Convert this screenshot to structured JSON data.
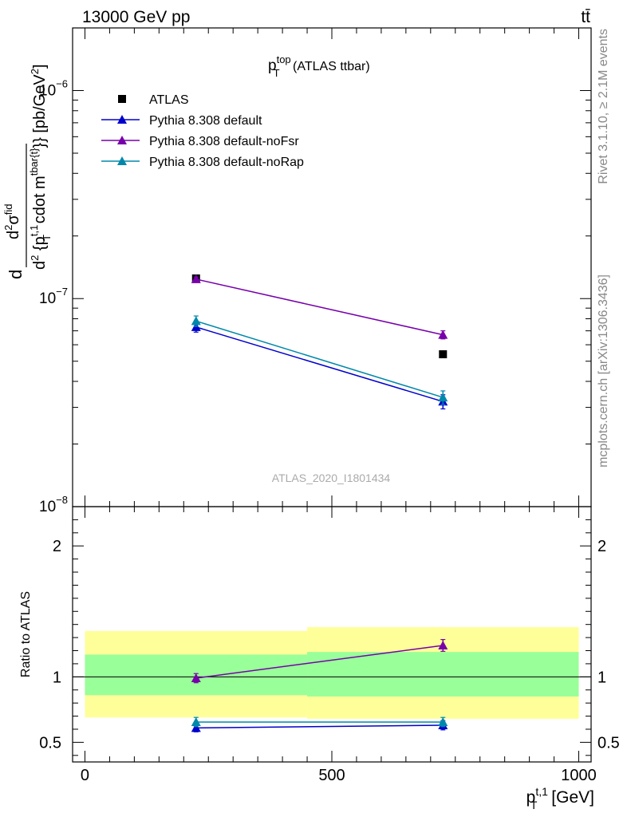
{
  "header": {
    "left": "13000 GeV pp",
    "right": "tt̄"
  },
  "side_labels": {
    "rivet": "Rivet 3.1.10, ≥ 2.1M events",
    "mcplots": "mcplots.cern.ch [arXiv:1306.3436]"
  },
  "chart_data": [
    {
      "type": "line",
      "title_main": "p",
      "title_sup": "top",
      "title_sub": "T",
      "title_rest": " (ATLAS ttbar)",
      "ylabel": "d²σ^{fid} / d² {p_T^{t,1} cdot m^{tbar{t}}} [pb/GeV²]",
      "ylabel_parts": {
        "d1": "d",
        "num": "d",
        "num_sup": "2",
        "num_sigma": "σ",
        "num_sigma_sup": "fid",
        "den_d": "d",
        "den_sup": "2",
        "den_p": " {p",
        "den_p_sup": "t,1",
        "den_p_sub": "T",
        "den_rest": " cdot m",
        "den_m_sup": "tbar{t}",
        "den_end": "}}",
        "unit": " [pb/GeV",
        "unit_sup": "2",
        "unit_end": "]"
      },
      "yscale": "log",
      "ylim": [
        1e-08,
        2e-06
      ],
      "xlim": [
        -25,
        1025
      ],
      "yticks_labeled": [
        {
          "value": 1e-08,
          "base": "10",
          "exp": "−8"
        },
        {
          "value": 1e-07,
          "base": "10",
          "exp": "−7"
        },
        {
          "value": 1e-06,
          "base": "10",
          "exp": "−6"
        }
      ],
      "watermark": "ATLAS_2020_I1801434",
      "legend_position": "top-left",
      "series": [
        {
          "name": "ATLAS",
          "color": "#000000",
          "marker": "square",
          "x": [
            225,
            725
          ],
          "y": [
            1.25e-07,
            5.4e-08
          ],
          "yerr": [
            0.0,
            0.0
          ]
        },
        {
          "name": "Pythia 8.308 default",
          "color": "#0000cc",
          "marker": "triangle",
          "x": [
            225,
            725
          ],
          "y": [
            7.3e-08,
            3.2e-08
          ],
          "yerr": [
            4e-09,
            2.5e-09
          ]
        },
        {
          "name": "Pythia 8.308 default-noFsr",
          "color": "#7700aa",
          "marker": "triangle",
          "x": [
            225,
            725
          ],
          "y": [
            1.24e-07,
            6.7e-08
          ],
          "yerr": [
            3e-09,
            3e-09
          ]
        },
        {
          "name": "Pythia 8.308 default-noRap",
          "color": "#0088aa",
          "marker": "triangle",
          "x": [
            225,
            725
          ],
          "y": [
            7.8e-08,
            3.35e-08
          ],
          "yerr": [
            4.5e-09,
            2.5e-09
          ]
        }
      ]
    },
    {
      "type": "line",
      "ylabel": "Ratio to ATLAS",
      "xlabel_main": "p",
      "xlabel_sup": "t,1",
      "xlabel_sub": "T",
      "xlabel_unit": " [GeV]",
      "ylim": [
        0.35,
        2.3
      ],
      "xlim": [
        -25,
        1025
      ],
      "yticks_labeled": [
        0.5,
        1,
        2
      ],
      "xticks_labeled": [
        0,
        500,
        1000
      ],
      "bands": [
        {
          "x": [
            0,
            450
          ],
          "outer": [
            0.69,
            1.35
          ],
          "inner": [
            0.86,
            1.17
          ]
        },
        {
          "x": [
            450,
            1000
          ],
          "outer": [
            0.68,
            1.38
          ],
          "inner": [
            0.85,
            1.19
          ]
        }
      ],
      "band_colors": {
        "outer": "#ffff99",
        "inner": "#99ff99"
      },
      "series": [
        {
          "name": "Pythia 8.308 default",
          "color": "#0000cc",
          "x": [
            225,
            725
          ],
          "y": [
            0.61,
            0.63
          ],
          "yerr": [
            0.03,
            0.035
          ]
        },
        {
          "name": "Pythia 8.308 default-noFsr",
          "color": "#7700aa",
          "x": [
            225,
            725
          ],
          "y": [
            0.99,
            1.24
          ],
          "yerr": [
            0.035,
            0.045
          ]
        },
        {
          "name": "Pythia 8.308 default-noRap",
          "color": "#0088aa",
          "x": [
            225,
            725
          ],
          "y": [
            0.655,
            0.655
          ],
          "yerr": [
            0.035,
            0.035
          ]
        }
      ]
    }
  ]
}
